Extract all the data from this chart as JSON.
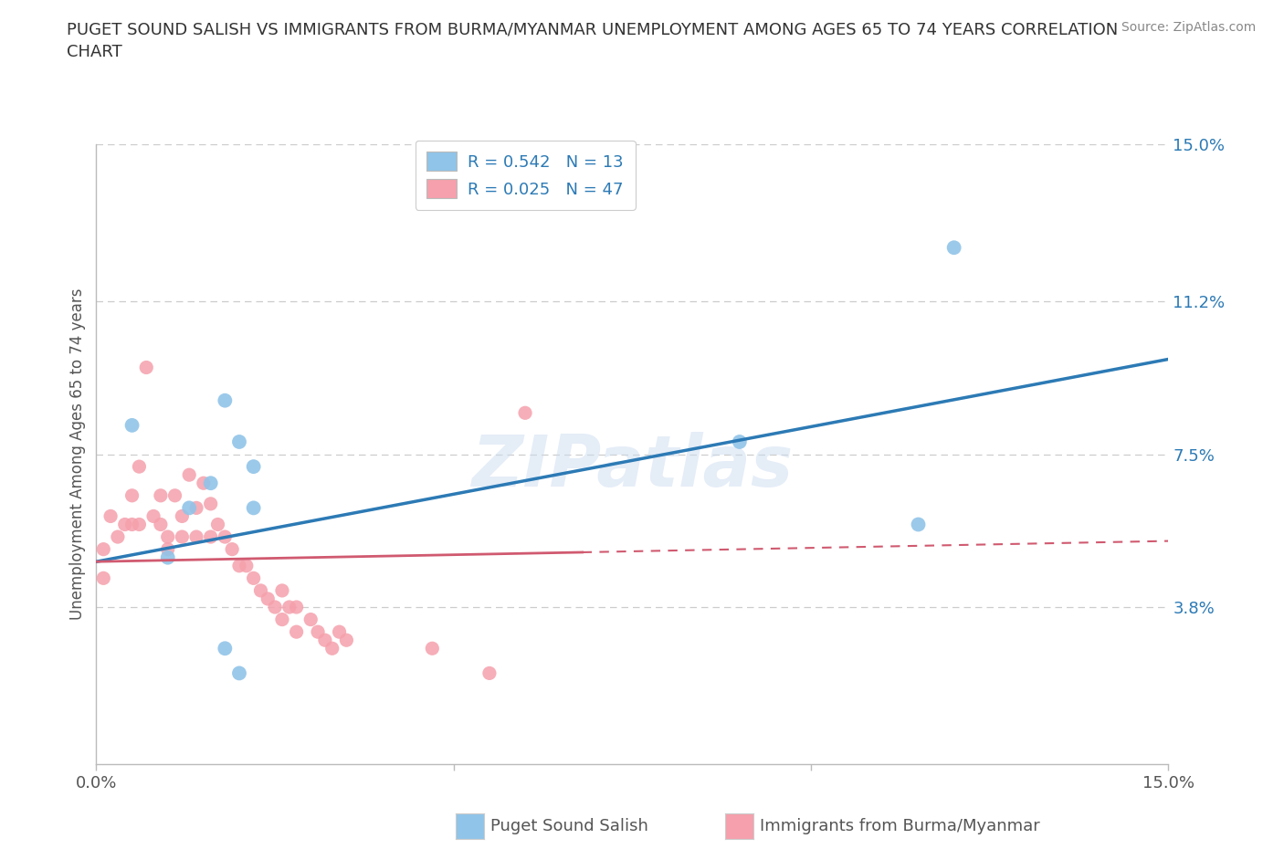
{
  "title": "PUGET SOUND SALISH VS IMMIGRANTS FROM BURMA/MYANMAR UNEMPLOYMENT AMONG AGES 65 TO 74 YEARS CORRELATION\nCHART",
  "source": "Source: ZipAtlas.com",
  "ylabel": "Unemployment Among Ages 65 to 74 years",
  "xlim": [
    0.0,
    0.15
  ],
  "ylim": [
    0.0,
    0.15
  ],
  "ytick_vals": [
    0.038,
    0.075,
    0.112,
    0.15
  ],
  "ytick_labels": [
    "3.8%",
    "7.5%",
    "11.2%",
    "15.0%"
  ],
  "xtick_vals": [
    0.0,
    0.05,
    0.1,
    0.15
  ],
  "xtick_labels": [
    "0.0%",
    "",
    "",
    "15.0%"
  ],
  "watermark": "ZIPatlas",
  "blue_R": 0.542,
  "blue_N": 13,
  "pink_R": 0.025,
  "pink_N": 47,
  "blue_scatter_color": "#90c4e8",
  "pink_scatter_color": "#f5a0ac",
  "blue_line_color": "#2c7ab5",
  "pink_line_color": "#d05a70",
  "legend_label_blue": "Puget Sound Salish",
  "legend_label_pink": "Immigrants from Burma/Myanmar",
  "background_color": "#ffffff",
  "grid_color": "#cccccc",
  "blue_x": [
    0.005,
    0.018,
    0.02,
    0.022,
    0.022,
    0.016,
    0.013,
    0.01,
    0.09,
    0.115,
    0.12,
    0.018,
    0.02
  ],
  "blue_y": [
    0.082,
    0.088,
    0.078,
    0.072,
    0.062,
    0.068,
    0.062,
    0.05,
    0.078,
    0.058,
    0.125,
    0.028,
    0.022
  ],
  "pink_x": [
    0.001,
    0.001,
    0.002,
    0.003,
    0.004,
    0.005,
    0.005,
    0.006,
    0.006,
    0.007,
    0.008,
    0.009,
    0.009,
    0.01,
    0.01,
    0.011,
    0.012,
    0.012,
    0.013,
    0.014,
    0.014,
    0.015,
    0.016,
    0.016,
    0.017,
    0.018,
    0.019,
    0.02,
    0.021,
    0.022,
    0.023,
    0.024,
    0.025,
    0.026,
    0.026,
    0.027,
    0.028,
    0.028,
    0.03,
    0.031,
    0.032,
    0.033,
    0.034,
    0.035,
    0.047,
    0.06,
    0.055
  ],
  "pink_y": [
    0.052,
    0.045,
    0.06,
    0.055,
    0.058,
    0.065,
    0.058,
    0.072,
    0.058,
    0.096,
    0.06,
    0.065,
    0.058,
    0.055,
    0.052,
    0.065,
    0.06,
    0.055,
    0.07,
    0.062,
    0.055,
    0.068,
    0.063,
    0.055,
    0.058,
    0.055,
    0.052,
    0.048,
    0.048,
    0.045,
    0.042,
    0.04,
    0.038,
    0.042,
    0.035,
    0.038,
    0.038,
    0.032,
    0.035,
    0.032,
    0.03,
    0.028,
    0.032,
    0.03,
    0.028,
    0.085,
    0.022
  ],
  "blue_line_x0": 0.0,
  "blue_line_y0": 0.049,
  "blue_line_x1": 0.15,
  "blue_line_y1": 0.098,
  "pink_line_x0": 0.0,
  "pink_line_y0": 0.049,
  "pink_line_x1": 0.15,
  "pink_line_y1": 0.054
}
